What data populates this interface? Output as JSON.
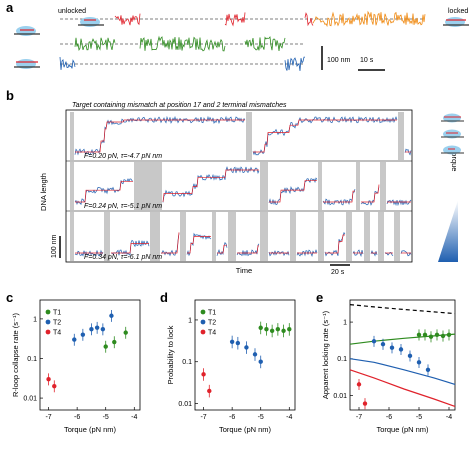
{
  "panel_a": {
    "letter": "a",
    "unlocked_label": "unlocked",
    "locked_label": "locked",
    "scalebar_y": "100 nm",
    "scalebar_x": "10 s",
    "colors": {
      "green": "#2e8b1f",
      "red": "#e0222b",
      "blue": "#1f5fb0",
      "orange": "#f08a12"
    }
  },
  "panel_b": {
    "letter": "b",
    "header": "Target containing mismatch at position 17 and 2 terminal mismatches",
    "ylabel": "DNA length",
    "xlabel": "Time",
    "scalebar_y": "100 nm",
    "scalebar_x": "20 s",
    "torque_label": "Torque",
    "rows": [
      {
        "condition": "F=0.20 pN, τ=-4.7 pN nm"
      },
      {
        "condition": "F=0.24 pN, τ=-5.1 pN nm"
      },
      {
        "condition": "F=0.34 pN, τ=-6.1 pN nm"
      }
    ],
    "colors": {
      "trace": "#1f5fb0",
      "fit": "#e0222b",
      "gap": "#c8c8c8"
    }
  },
  "chart_data": [
    {
      "panel": "c",
      "type": "scatter",
      "title": "",
      "xlabel": "Torque (pN nm)",
      "ylabel": "R-loop collapse rate (s⁻¹)",
      "xlim": [
        -7.3,
        -3.8
      ],
      "ylim": [
        0.005,
        3
      ],
      "yscale": "log",
      "xticks": [
        "-7",
        "-6",
        "-5",
        "-4"
      ],
      "yticks": [
        "0.01",
        "0.1",
        "1"
      ],
      "legend": "top-left",
      "series": [
        {
          "name": "T1",
          "color": "#2e8b1f",
          "points": [
            [
              -5.0,
              0.2
            ],
            [
              -4.7,
              0.26
            ],
            [
              -4.3,
              0.45
            ]
          ]
        },
        {
          "name": "T2",
          "color": "#1f5fb0",
          "points": [
            [
              -6.1,
              0.3
            ],
            [
              -5.8,
              0.4
            ],
            [
              -5.5,
              0.55
            ],
            [
              -5.3,
              0.6
            ],
            [
              -5.1,
              0.55
            ],
            [
              -4.8,
              1.2
            ]
          ]
        },
        {
          "name": "T4",
          "color": "#e0222b",
          "points": [
            [
              -7.0,
              0.03
            ],
            [
              -6.8,
              0.02
            ]
          ]
        }
      ]
    },
    {
      "panel": "d",
      "type": "scatter",
      "title": "",
      "xlabel": "Torque (pN nm)",
      "ylabel": "Probability to lock",
      "xlim": [
        -7.3,
        -3.8
      ],
      "ylim": [
        0.007,
        3
      ],
      "yscale": "log",
      "xticks": [
        "-7",
        "-6",
        "-5",
        "-4"
      ],
      "yticks": [
        "0.01",
        "0.1",
        "1"
      ],
      "legend": "top-left",
      "series": [
        {
          "name": "T1",
          "color": "#2e8b1f",
          "points": [
            [
              -5.0,
              0.65
            ],
            [
              -4.8,
              0.6
            ],
            [
              -4.6,
              0.55
            ],
            [
              -4.4,
              0.6
            ],
            [
              -4.2,
              0.55
            ],
            [
              -4.0,
              0.6
            ]
          ]
        },
        {
          "name": "T2",
          "color": "#1f5fb0",
          "points": [
            [
              -6.0,
              0.3
            ],
            [
              -5.8,
              0.28
            ],
            [
              -5.5,
              0.22
            ],
            [
              -5.2,
              0.15
            ],
            [
              -5.0,
              0.1
            ]
          ]
        },
        {
          "name": "T4",
          "color": "#e0222b",
          "points": [
            [
              -7.0,
              0.05
            ],
            [
              -6.8,
              0.02
            ]
          ]
        }
      ]
    },
    {
      "panel": "e",
      "type": "line",
      "title": "",
      "xlabel": "Torque (pN nm)",
      "ylabel": "Apparent locking rate (s⁻¹)",
      "xlim": [
        -7.3,
        -3.8
      ],
      "ylim": [
        0.004,
        4
      ],
      "yscale": "log",
      "xticks": [
        "-7",
        "-6",
        "-5",
        "-4"
      ],
      "yticks": [
        "0.01",
        "0.1",
        "1"
      ],
      "series": [
        {
          "name": "",
          "color": "#2e8b1f",
          "points": [
            [
              -5.0,
              0.45
            ],
            [
              -4.8,
              0.45
            ],
            [
              -4.6,
              0.4
            ],
            [
              -4.4,
              0.45
            ],
            [
              -4.2,
              0.42
            ],
            [
              -4.0,
              0.45
            ]
          ],
          "curve": [
            [
              -7.3,
              0.25
            ],
            [
              -6.5,
              0.3
            ],
            [
              -5.5,
              0.36
            ],
            [
              -4.5,
              0.42
            ],
            [
              -3.8,
              0.47
            ]
          ]
        },
        {
          "name": "",
          "color": "#1f5fb0",
          "points": [
            [
              -6.5,
              0.3
            ],
            [
              -6.2,
              0.25
            ],
            [
              -5.9,
              0.2
            ],
            [
              -5.6,
              0.18
            ],
            [
              -5.3,
              0.12
            ],
            [
              -5.0,
              0.08
            ],
            [
              -4.7,
              0.05
            ]
          ],
          "curve": [
            [
              -7.3,
              0.1
            ],
            [
              -6.5,
              0.08
            ],
            [
              -5.5,
              0.05
            ],
            [
              -4.5,
              0.03
            ],
            [
              -3.8,
              0.02
            ]
          ]
        },
        {
          "name": "",
          "color": "#e0222b",
          "points": [
            [
              -7.0,
              0.02
            ],
            [
              -6.8,
              0.006
            ]
          ],
          "curve": [
            [
              -7.3,
              0.05
            ],
            [
              -6.5,
              0.03
            ],
            [
              -5.5,
              0.015
            ],
            [
              -4.5,
              0.008
            ],
            [
              -3.8,
              0.005
            ]
          ]
        },
        {
          "name": "",
          "color": "#000000",
          "dashed": true,
          "curve": [
            [
              -7.3,
              3.0
            ],
            [
              -6.5,
              2.6
            ],
            [
              -5.5,
              2.2
            ],
            [
              -4.5,
              1.9
            ],
            [
              -3.8,
              1.7
            ]
          ]
        }
      ]
    }
  ]
}
